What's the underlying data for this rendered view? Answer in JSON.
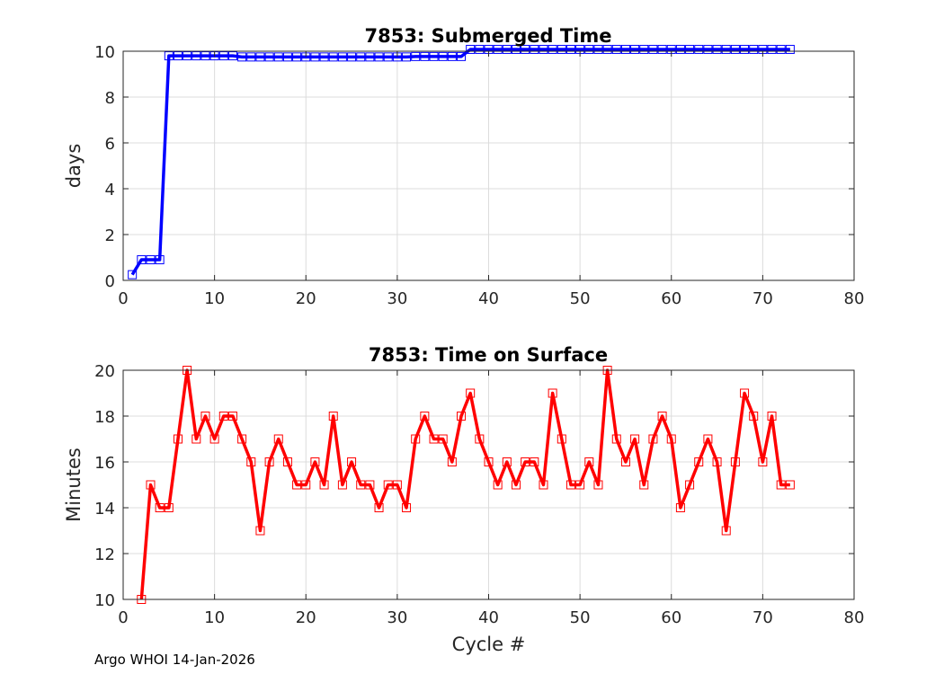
{
  "chart_data": [
    {
      "type": "line",
      "title": "7853: Submerged Time",
      "xlabel": "",
      "ylabel": "days",
      "xlim": [
        0,
        80
      ],
      "ylim": [
        0,
        10
      ],
      "xticks": [
        0,
        10,
        20,
        30,
        40,
        50,
        60,
        70,
        80
      ],
      "yticks": [
        0,
        2,
        4,
        6,
        8,
        10
      ],
      "grid": true,
      "color": "#0000ff",
      "marker": "square",
      "series": [
        {
          "name": "Submerged Time",
          "x": [
            1,
            2,
            3,
            4,
            5,
            6,
            7,
            8,
            9,
            10,
            11,
            12,
            13,
            14,
            15,
            16,
            17,
            18,
            19,
            20,
            21,
            22,
            23,
            24,
            25,
            26,
            27,
            28,
            29,
            30,
            31,
            32,
            33,
            34,
            35,
            36,
            37,
            38,
            39,
            40,
            41,
            42,
            43,
            44,
            45,
            46,
            47,
            48,
            49,
            50,
            51,
            52,
            53,
            54,
            55,
            56,
            57,
            58,
            59,
            60,
            61,
            62,
            63,
            64,
            65,
            66,
            67,
            68,
            69,
            70,
            71,
            72,
            73
          ],
          "y": [
            0.25,
            0.9,
            0.9,
            0.9,
            9.8,
            9.8,
            9.8,
            9.8,
            9.8,
            9.8,
            9.8,
            9.8,
            9.75,
            9.75,
            9.75,
            9.75,
            9.75,
            9.75,
            9.75,
            9.75,
            9.75,
            9.75,
            9.75,
            9.75,
            9.75,
            9.75,
            9.75,
            9.75,
            9.75,
            9.75,
            9.75,
            9.77,
            9.77,
            9.77,
            9.77,
            9.77,
            9.77,
            10.08,
            10.08,
            10.08,
            10.08,
            10.08,
            10.08,
            10.08,
            10.08,
            10.08,
            10.08,
            10.08,
            10.08,
            10.08,
            10.08,
            10.08,
            10.08,
            10.08,
            10.08,
            10.08,
            10.08,
            10.08,
            10.08,
            10.08,
            10.08,
            10.08,
            10.08,
            10.08,
            10.08,
            10.08,
            10.08,
            10.08,
            10.08,
            10.08,
            10.08,
            10.08,
            10.08
          ]
        }
      ]
    },
    {
      "type": "line",
      "title": "7853: Time on Surface",
      "xlabel": "Cycle #",
      "ylabel": "Minutes",
      "xlim": [
        0,
        80
      ],
      "ylim": [
        10,
        20
      ],
      "xticks": [
        0,
        10,
        20,
        30,
        40,
        50,
        60,
        70,
        80
      ],
      "yticks": [
        10,
        12,
        14,
        16,
        18,
        20
      ],
      "grid": true,
      "color": "#ff0000",
      "marker": "square",
      "series": [
        {
          "name": "Time on Surface",
          "x": [
            2,
            3,
            4,
            5,
            6,
            7,
            8,
            9,
            10,
            11,
            12,
            13,
            14,
            15,
            16,
            17,
            18,
            19,
            20,
            21,
            22,
            23,
            24,
            25,
            26,
            27,
            28,
            29,
            30,
            31,
            32,
            33,
            34,
            35,
            36,
            37,
            38,
            39,
            40,
            41,
            42,
            43,
            44,
            45,
            46,
            47,
            48,
            49,
            50,
            51,
            52,
            53,
            54,
            55,
            56,
            57,
            58,
            59,
            60,
            61,
            62,
            63,
            64,
            65,
            66,
            67,
            68,
            69,
            70,
            71,
            72,
            73
          ],
          "y": [
            10,
            15,
            14,
            14,
            17,
            20,
            17,
            18,
            17,
            18,
            18,
            17,
            16,
            13,
            16,
            17,
            16,
            15,
            15,
            16,
            15,
            18,
            15,
            16,
            15,
            15,
            14,
            15,
            15,
            14,
            17,
            18,
            17,
            17,
            16,
            18,
            19,
            17,
            16,
            15,
            16,
            15,
            16,
            16,
            15,
            19,
            17,
            15,
            15,
            16,
            15,
            20,
            17,
            16,
            17,
            15,
            17,
            18,
            17,
            14,
            15,
            16,
            17,
            16,
            13,
            16,
            19,
            18,
            16,
            18,
            15,
            15
          ]
        }
      ]
    }
  ],
  "footer": "Argo WHOI 14-Jan-2026"
}
